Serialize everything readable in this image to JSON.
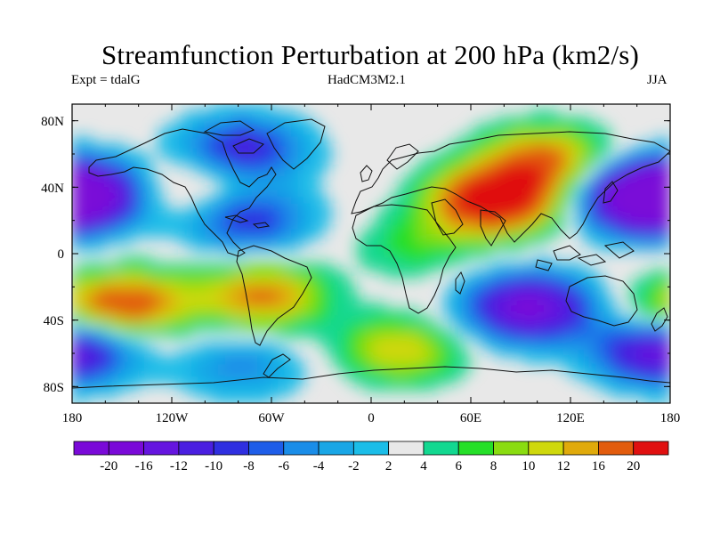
{
  "title": "Streamfunction Perturbation at 200 hPa (km2/s)",
  "left_string": "Expt = tdalG",
  "center_string": "HadCM3M2.1",
  "right_string": "JJA",
  "chart_data": {
    "type": "heatmap",
    "projection": "cylindrical equidistant",
    "variable": "streamfunction perturbation at 200 hPa",
    "units": "km2/s",
    "season": "JJA",
    "lon_range": [
      -180,
      180
    ],
    "lat_range": [
      -90,
      90
    ],
    "x_tick_labels": [
      "180",
      "120W",
      "60W",
      "0",
      "60E",
      "120E",
      "180"
    ],
    "y_tick_labels": [
      "80N",
      "40N",
      "0",
      "40S",
      "80S"
    ],
    "contour_levels": [
      -20,
      -16,
      -12,
      -10,
      -8,
      -6,
      -4,
      -2,
      2,
      4,
      6,
      8,
      10,
      12,
      16,
      20
    ],
    "colorbar_labels": [
      "-20",
      "-16",
      "-12",
      "-10",
      "-8",
      "-6",
      "-4",
      "-2",
      "2",
      "4",
      "6",
      "8",
      "10",
      "12",
      "16",
      "20"
    ],
    "colorbar_colors": [
      "#7a0ad8",
      "#6515df",
      "#4a1fe0",
      "#2f2fe0",
      "#1e5de8",
      "#1a8de8",
      "#19a6e6",
      "#1bbde8",
      "#e8e8e8",
      "#12d890",
      "#25df28",
      "#8adc10",
      "#cfd80c",
      "#e0aa0b",
      "#e25c0d",
      "#e01010"
    ],
    "centers": [
      {
        "lon": 75,
        "lat": 32,
        "value": 22
      },
      {
        "lon": 105,
        "lat": 57,
        "value": 13
      },
      {
        "lon": -178,
        "lat": 36,
        "value": -22
      },
      {
        "lon": 165,
        "lat": 32,
        "value": -21
      },
      {
        "lon": -78,
        "lat": 62,
        "value": -14
      },
      {
        "lon": -75,
        "lat": 21,
        "value": -13
      },
      {
        "lon": -101,
        "lat": 40,
        "value": 7
      },
      {
        "lon": -143,
        "lat": -30,
        "value": 13
      },
      {
        "lon": -65,
        "lat": -26,
        "value": 13
      },
      {
        "lon": 95,
        "lat": -33,
        "value": -22
      },
      {
        "lon": 18,
        "lat": -58,
        "value": 10
      },
      {
        "lon": -180,
        "lat": -58,
        "value": -11
      },
      {
        "lon": 172,
        "lat": -58,
        "value": -11
      },
      {
        "lon": -78,
        "lat": -68,
        "value": -7
      },
      {
        "lon": 28,
        "lat": 5,
        "value": 5
      },
      {
        "lon": 180,
        "lat": -38,
        "value": 8
      }
    ]
  }
}
